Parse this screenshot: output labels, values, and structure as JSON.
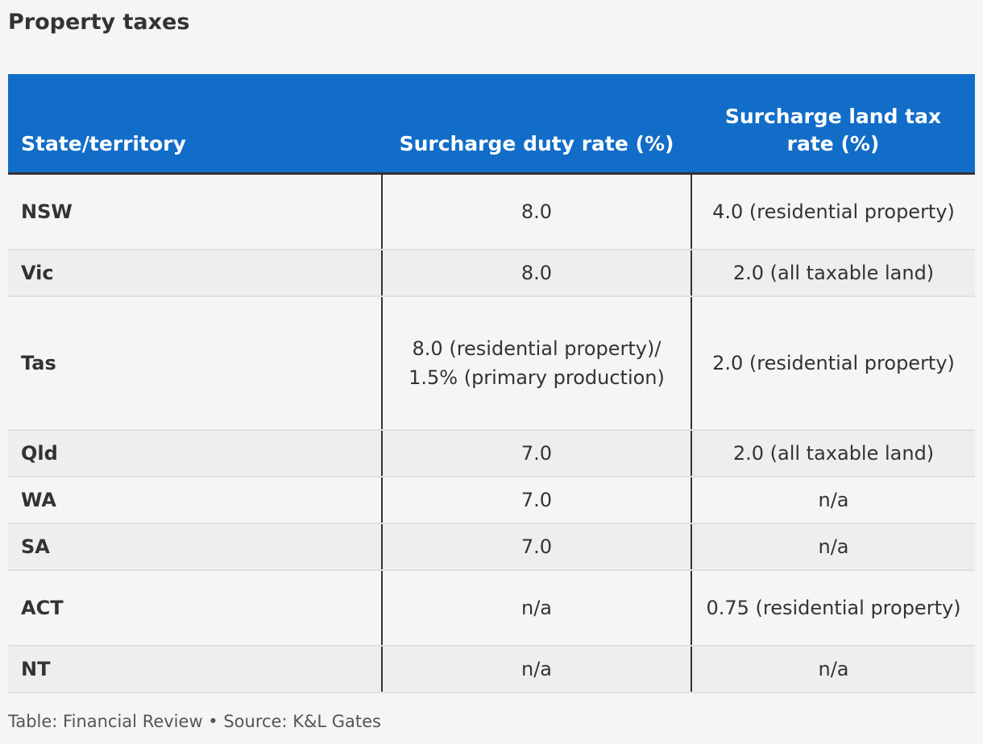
{
  "title": "Property taxes",
  "table": {
    "headers": [
      "State/territory",
      "Surcharge duty rate (%)",
      "Surcharge land tax rate (%)"
    ],
    "rows": [
      [
        "NSW",
        "8.0",
        "4.0 (residential property)"
      ],
      [
        "Vic",
        "8.0",
        "2.0 (all taxable land)"
      ],
      [
        "Tas",
        "8.0 (residential property)/ 1.5% (primary production)",
        "2.0 (residential property)"
      ],
      [
        "Qld",
        "7.0",
        "2.0 (all taxable land)"
      ],
      [
        "WA",
        "7.0",
        "n/a"
      ],
      [
        "SA",
        "7.0",
        "n/a"
      ],
      [
        "ACT",
        "n/a",
        "0.75 (residential property)"
      ],
      [
        "NT",
        "n/a",
        "n/a"
      ]
    ]
  },
  "footer": "Table: Financial Review • Source: K&L Gates",
  "colors": {
    "header_bg": "#116dc8",
    "row_alt": "#eeeeee",
    "row_bg": "#f5f5f5"
  }
}
